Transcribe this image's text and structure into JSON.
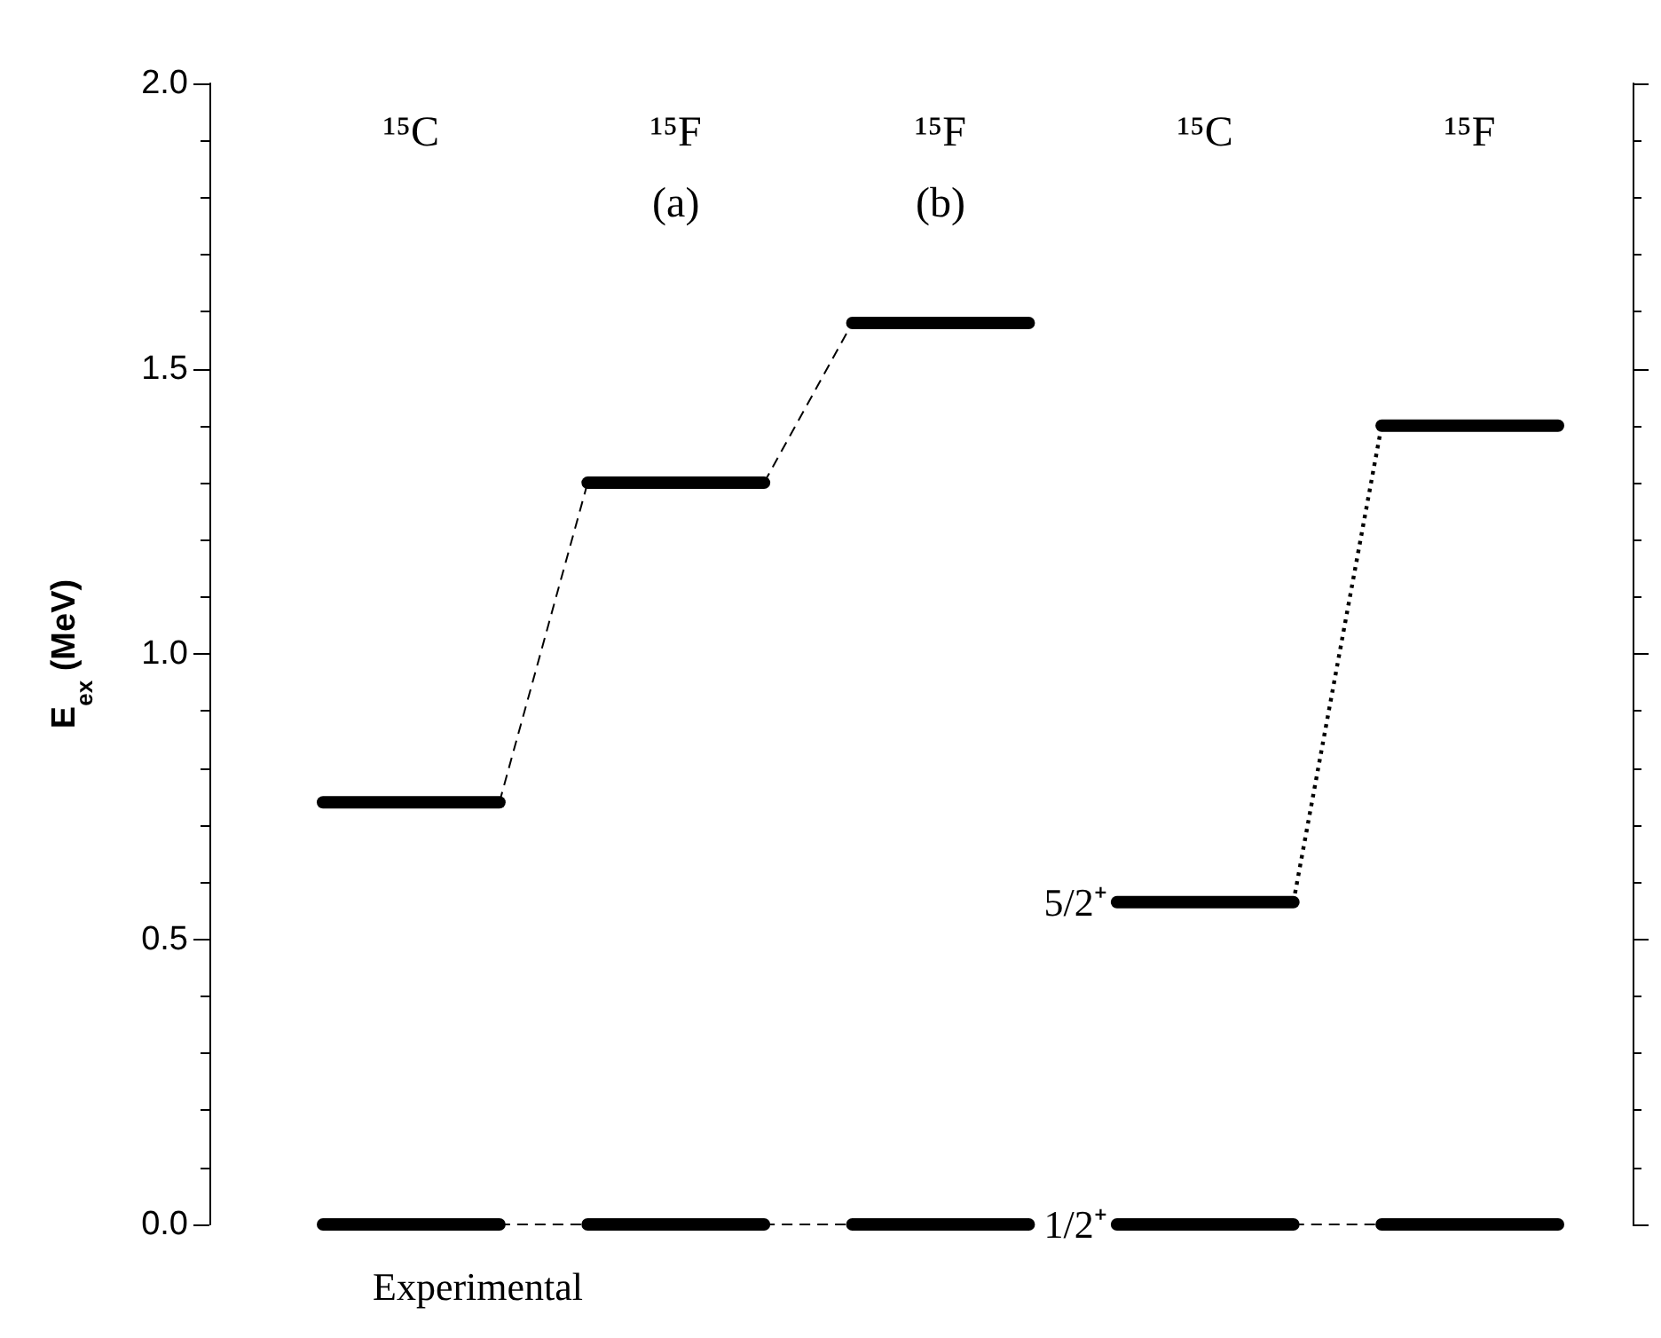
{
  "chart_data": {
    "type": "line",
    "ylabel": "E$_{ex}$ (MeV)",
    "categories": [
      null,
      "¹⁵C",
      null,
      null,
      "¹⁵F\n(a)",
      null,
      null,
      "¹⁵F\n(b)",
      null,
      null,
      "¹⁵C",
      null,
      null,
      "¹⁵F",
      null
    ],
    "series": [
      {
        "color": "#000000",
        "line_style": "solid",
        "values": [
          0.74,
          0.74,
          0.74,
          null,
          null,
          null,
          null,
          null,
          null,
          null,
          null,
          null,
          null,
          null,
          null
        ]
      },
      {
        "color": "#000000",
        "line_style": "solid",
        "values": [
          null,
          null,
          null,
          1.3,
          1.3,
          1.3,
          null,
          null,
          null,
          null,
          null,
          null,
          null,
          null,
          null
        ]
      },
      {
        "color": "#000000",
        "line_style": "solid",
        "values": [
          null,
          null,
          null,
          null,
          null,
          null,
          1.58,
          1.58,
          1.58,
          null,
          null,
          null,
          null,
          null,
          null
        ]
      },
      {
        "color": "#000000",
        "line_style": "solid",
        "values": [
          0,
          0,
          0,
          null,
          null,
          null,
          null,
          null,
          null,
          null,
          null,
          null,
          null,
          null,
          null
        ]
      },
      {
        "color": "#000000",
        "line_style": "solid",
        "values": [
          null,
          null,
          null,
          0,
          0,
          0,
          null,
          null,
          null,
          null,
          null,
          null,
          null,
          null,
          null
        ]
      },
      {
        "color": "#000000",
        "line_style": "solid",
        "values": [
          null,
          null,
          null,
          null,
          null,
          null,
          0,
          0,
          0,
          null,
          null,
          null,
          null,
          null,
          null
        ]
      },
      {
        "color": "#000000",
        "line_style": "solid",
        "values": [
          null,
          null,
          null,
          null,
          null,
          null,
          null,
          null,
          null,
          0.565,
          0.565,
          0.565,
          null,
          null,
          null
        ],
        "value_labels": [
          null,
          null,
          null,
          null,
          null,
          null,
          null,
          null,
          null,
          "5/2⁺",
          null,
          null,
          null,
          null,
          null
        ]
      },
      {
        "color": "#000000",
        "line_style": "solid",
        "values": [
          null,
          null,
          null,
          null,
          null,
          null,
          null,
          null,
          null,
          null,
          null,
          null,
          1.4,
          1.4,
          1.4
        ]
      },
      {
        "color": "#000000",
        "line_style": "solid",
        "values": [
          null,
          null,
          null,
          null,
          null,
          null,
          null,
          null,
          null,
          0,
          0,
          0,
          null,
          null,
          null
        ],
        "value_labels": [
          null,
          null,
          null,
          null,
          null,
          null,
          null,
          null,
          null,
          "1/2⁺",
          null,
          null,
          null,
          null,
          null
        ]
      },
      {
        "color": "#000000",
        "line_style": "solid",
        "values": [
          null,
          null,
          null,
          null,
          null,
          null,
          null,
          null,
          null,
          null,
          null,
          null,
          0,
          0,
          0
        ]
      },
      {
        "color": "#000000",
        "line_style": "dashed",
        "values": [
          null,
          null,
          0.74,
          1.3,
          null,
          null,
          null,
          null,
          null,
          null,
          null,
          null,
          null,
          null,
          null
        ]
      },
      {
        "color": "#000000",
        "line_style": "dashed",
        "values": [
          null,
          null,
          null,
          null,
          null,
          1.3,
          1.58,
          null,
          null,
          null,
          null,
          null,
          null,
          null,
          null
        ]
      },
      {
        "color": "#000000",
        "line_style": "dashed",
        "values": [
          null,
          null,
          0,
          0,
          null,
          null,
          null,
          null,
          null,
          null,
          null,
          null,
          null,
          null,
          null
        ]
      },
      {
        "color": "#000000",
        "line_style": "dashed",
        "values": [
          null,
          null,
          null,
          null,
          null,
          0,
          0,
          null,
          null,
          null,
          null,
          null,
          null,
          null,
          null
        ]
      },
      {
        "color": "#000000",
        "line_style": "dotted",
        "values": [
          null,
          null,
          null,
          null,
          null,
          null,
          null,
          null,
          null,
          null,
          null,
          0.565,
          1.4,
          null,
          null
        ]
      },
      {
        "color": "#000000",
        "line_style": "dashed",
        "values": [
          null,
          null,
          null,
          null,
          null,
          null,
          null,
          null,
          null,
          null,
          null,
          0,
          0,
          null,
          null
        ]
      }
    ],
    "ylim": [
      0,
      2
    ],
    "yticks": [
      {
        "value": 0,
        "label": "0.0"
      },
      {
        "value": 0.5,
        "label": "0.5"
      },
      {
        "value": 1,
        "label": "1.0"
      },
      {
        "value": 1.5,
        "label": "1.5"
      },
      {
        "value": 2,
        "label": "2.0"
      }
    ],
    "annotations": [
      "Experimental"
    ]
  }
}
